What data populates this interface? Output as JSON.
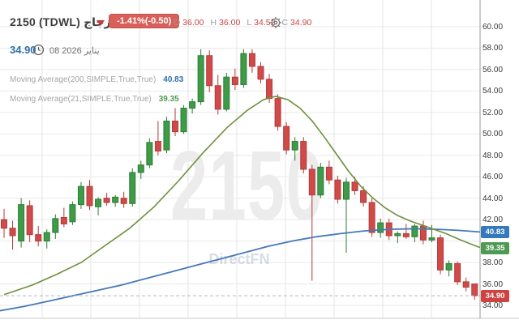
{
  "header": {
    "symbol": "2150 (TDWL) زجاج",
    "change_badge": "-1.41%(-0.50)",
    "ohlc": {
      "o_label": "O",
      "o": "36.00",
      "h_label": "H",
      "h": "36.00",
      "l_label": "L",
      "l": "34.52",
      "c_label": "C",
      "c": "34.90"
    },
    "last_price": "34.90",
    "date": "08 2026 يناير"
  },
  "indicators": [
    {
      "label": "Moving Average(200,SIMPLE,True,True)",
      "value": "40.83"
    },
    {
      "label": "Moving Average(21,SIMPLE,True,True)",
      "value": "39.35"
    }
  ],
  "watermark": {
    "symbol": "2150",
    "brand": "DirectFN"
  },
  "axis_badges": {
    "ma200": "40.83",
    "ma21": "39.35",
    "last": "34.90"
  },
  "colors": {
    "candle_up_fill": "#3e9b47",
    "candle_up_stroke": "#2e7c37",
    "candle_down_fill": "#d04a4a",
    "candle_down_stroke": "#b33a3a",
    "ma200_line": "#4679b8",
    "ma21_line": "#6f8f3c",
    "accent_blue": "#2f6fad",
    "badge_red": "#cf4242",
    "badge_blue": "#3579bd",
    "badge_green": "#4f9a52"
  },
  "chart_data": {
    "type": "candlestick",
    "title": "2150 (TDWL) daily candlestick chart with MA200 and MA21",
    "y_axis": {
      "min": 34,
      "max": 60,
      "step": 2,
      "visible_ticks": [
        60,
        58,
        56,
        54,
        52,
        50,
        48,
        46,
        44,
        42,
        38,
        36,
        34
      ]
    },
    "last_close": 34.9,
    "candles": [
      [
        42.0,
        43.0,
        40.3,
        41.2
      ],
      [
        41.2,
        41.9,
        39.2,
        40.5
      ],
      [
        40.0,
        44.0,
        39.4,
        43.4
      ],
      [
        43.3,
        43.8,
        39.9,
        40.6
      ],
      [
        40.6,
        41.4,
        39.5,
        40.0
      ],
      [
        40.0,
        41.1,
        39.3,
        40.8
      ],
      [
        40.8,
        42.5,
        40.2,
        42.1
      ],
      [
        42.2,
        43.1,
        41.3,
        41.6
      ],
      [
        41.8,
        43.7,
        41.5,
        43.4
      ],
      [
        43.4,
        45.5,
        43.0,
        45.1
      ],
      [
        45.1,
        45.7,
        42.9,
        43.3
      ],
      [
        43.2,
        44.1,
        42.4,
        43.9
      ],
      [
        44.0,
        44.5,
        43.3,
        43.6
      ],
      [
        43.6,
        44.3,
        43.2,
        44.1
      ],
      [
        44.0,
        44.6,
        43.1,
        43.5
      ],
      [
        43.5,
        46.8,
        43.2,
        46.4
      ],
      [
        46.4,
        47.5,
        45.8,
        47.1
      ],
      [
        47.1,
        49.6,
        46.8,
        49.2
      ],
      [
        49.3,
        51.2,
        48.0,
        48.4
      ],
      [
        48.5,
        51.6,
        48.2,
        51.2
      ],
      [
        51.2,
        52.4,
        49.8,
        50.2
      ],
      [
        50.2,
        52.7,
        50.0,
        52.4
      ],
      [
        52.4,
        53.3,
        51.9,
        53.0
      ],
      [
        53.0,
        57.9,
        52.7,
        57.3
      ],
      [
        57.3,
        57.8,
        53.9,
        54.5
      ],
      [
        54.5,
        55.5,
        51.8,
        52.3
      ],
      [
        52.3,
        55.7,
        52.1,
        55.3
      ],
      [
        55.3,
        56.1,
        54.1,
        54.6
      ],
      [
        54.6,
        57.9,
        54.3,
        57.5
      ],
      [
        57.5,
        57.9,
        55.7,
        56.3
      ],
      [
        56.3,
        56.7,
        54.7,
        55.1
      ],
      [
        55.1,
        55.6,
        52.9,
        53.3
      ],
      [
        53.3,
        53.7,
        50.3,
        50.7
      ],
      [
        50.7,
        51.1,
        48.1,
        48.5
      ],
      [
        48.5,
        49.7,
        47.5,
        49.3
      ],
      [
        49.3,
        49.7,
        46.3,
        46.7
      ],
      [
        46.7,
        47.1,
        36.3,
        44.3
      ],
      [
        44.3,
        47.3,
        44.0,
        46.9
      ],
      [
        46.9,
        47.5,
        45.3,
        45.7
      ],
      [
        45.7,
        46.1,
        43.5,
        43.9
      ],
      [
        43.9,
        45.9,
        38.9,
        45.5
      ],
      [
        45.5,
        46.0,
        44.3,
        44.7
      ],
      [
        44.7,
        45.1,
        43.2,
        43.6
      ],
      [
        43.6,
        44.0,
        40.4,
        40.8
      ],
      [
        40.8,
        42.1,
        40.3,
        41.7
      ],
      [
        41.7,
        42.1,
        40.1,
        40.5
      ],
      [
        40.5,
        40.9,
        39.8,
        40.7
      ],
      [
        40.7,
        41.6,
        40.2,
        40.4
      ],
      [
        40.4,
        41.6,
        39.9,
        41.4
      ],
      [
        41.4,
        41.9,
        39.7,
        40.1
      ],
      [
        40.1,
        41.5,
        39.9,
        40.3
      ],
      [
        40.3,
        40.6,
        36.9,
        37.3
      ],
      [
        37.3,
        38.2,
        36.7,
        37.9
      ],
      [
        37.9,
        38.1,
        35.9,
        36.2
      ],
      [
        36.2,
        36.6,
        35.3,
        35.7
      ],
      [
        36.0,
        36.0,
        34.52,
        34.9
      ]
    ],
    "ma200": {
      "name": "Moving Average(200)",
      "color": "#4679b8",
      "points": [
        [
          0,
          33.5
        ],
        [
          30,
          33.9
        ],
        [
          60,
          34.4
        ],
        [
          90,
          34.9
        ],
        [
          120,
          35.4
        ],
        [
          150,
          35.9
        ],
        [
          180,
          36.5
        ],
        [
          210,
          37.1
        ],
        [
          240,
          37.7
        ],
        [
          270,
          38.3
        ],
        [
          300,
          38.9
        ],
        [
          330,
          39.5
        ],
        [
          360,
          40.0
        ],
        [
          390,
          40.4
        ],
        [
          420,
          40.7
        ],
        [
          450,
          40.95
        ],
        [
          480,
          41.1
        ],
        [
          510,
          41.15
        ],
        [
          540,
          41.1
        ],
        [
          565,
          41.0
        ],
        [
          592,
          40.85
        ]
      ]
    },
    "ma21": {
      "name": "Moving Average(21)",
      "color": "#6f8f3c",
      "points": [
        [
          5,
          35.0
        ],
        [
          40,
          35.9
        ],
        [
          70,
          36.9
        ],
        [
          100,
          38.0
        ],
        [
          130,
          39.6
        ],
        [
          160,
          41.2
        ],
        [
          190,
          43.2
        ],
        [
          220,
          45.6
        ],
        [
          250,
          48.2
        ],
        [
          280,
          50.6
        ],
        [
          305,
          52.2
        ],
        [
          325,
          53.2
        ],
        [
          340,
          53.5
        ],
        [
          355,
          53.2
        ],
        [
          370,
          52.4
        ],
        [
          385,
          51.2
        ],
        [
          400,
          49.7
        ],
        [
          415,
          48.1
        ],
        [
          430,
          46.5
        ],
        [
          445,
          45.1
        ],
        [
          460,
          44.0
        ],
        [
          475,
          43.1
        ],
        [
          490,
          42.4
        ],
        [
          505,
          41.9
        ],
        [
          520,
          41.5
        ],
        [
          535,
          41.1
        ],
        [
          550,
          40.7
        ],
        [
          565,
          40.2
        ],
        [
          578,
          39.8
        ],
        [
          592,
          39.4
        ]
      ]
    }
  }
}
